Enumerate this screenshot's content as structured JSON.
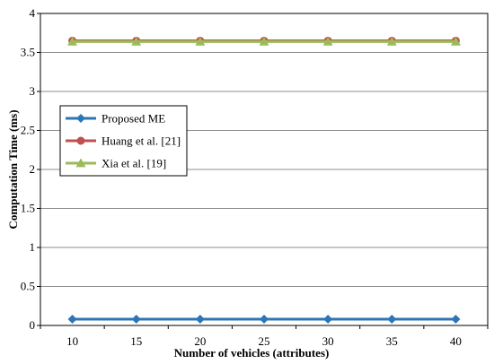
{
  "chart_data": {
    "type": "line",
    "title": "",
    "xlabel": "Number  of vehicles (attributes)",
    "ylabel": "Computation Time (ms)",
    "x": [
      10,
      15,
      20,
      25,
      30,
      35,
      40
    ],
    "ylim": [
      0,
      4
    ],
    "yticks": [
      "0",
      "0.5",
      "1",
      "1.5",
      "2",
      "2.5",
      "3",
      "3.5",
      "4"
    ],
    "grid": true,
    "legend_position": "left-middle",
    "series": [
      {
        "name": "Proposed ME",
        "color": "#2e75b6",
        "marker": "diamond",
        "values": [
          0.08,
          0.08,
          0.08,
          0.08,
          0.08,
          0.08,
          0.08
        ]
      },
      {
        "name": "Huang et al. [21]",
        "color": "#c0504d",
        "marker": "circle",
        "values": [
          3.65,
          3.65,
          3.65,
          3.65,
          3.65,
          3.65,
          3.65
        ]
      },
      {
        "name": "Xia et al. [19]",
        "color": "#9bbb59",
        "marker": "triangle",
        "values": [
          3.64,
          3.64,
          3.64,
          3.64,
          3.64,
          3.64,
          3.64
        ]
      }
    ]
  }
}
